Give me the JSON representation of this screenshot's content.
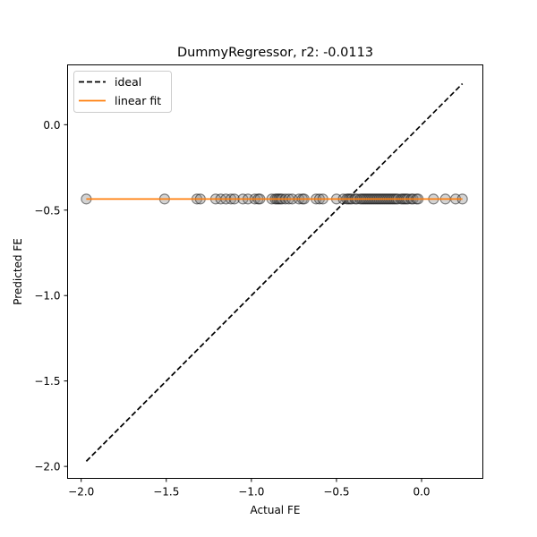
{
  "chart_data": {
    "type": "scatter",
    "title": "DummyRegressor, r2: -0.0113",
    "xlabel": "Actual FE",
    "ylabel": "Predicted FE",
    "xlim": [
      -2.08,
      0.36
    ],
    "ylim": [
      -2.07,
      0.35
    ],
    "xticks": [
      -2.0,
      -1.5,
      -1.0,
      -0.5,
      0.0
    ],
    "xtick_labels": [
      "−2.0",
      "−1.5",
      "−1.0",
      "−0.5",
      "0.0"
    ],
    "yticks": [
      0.0,
      -0.5,
      -1.0,
      -1.5,
      -2.0
    ],
    "ytick_labels": [
      "0.0",
      "−0.5",
      "−1.0",
      "−1.5",
      "−2.0"
    ],
    "grid": false,
    "legend_position": "upper-left",
    "legend": [
      {
        "label": "ideal",
        "style": "dashed",
        "color": "#000000"
      },
      {
        "label": "linear fit",
        "style": "solid",
        "color": "#ff7f0e"
      }
    ],
    "ideal_line": {
      "x": [
        -1.97,
        0.24
      ],
      "y": [
        -1.97,
        0.24
      ]
    },
    "fit_line": {
      "x": [
        -1.97,
        0.24
      ],
      "y": [
        -0.435,
        -0.435
      ]
    },
    "points": {
      "y": -0.435,
      "marker_color": "#808080",
      "x": [
        -1.97,
        -1.51,
        -1.32,
        -1.3,
        -1.21,
        -1.18,
        -1.15,
        -1.12,
        -1.1,
        -1.05,
        -1.02,
        -0.98,
        -0.96,
        -0.95,
        -0.88,
        -0.86,
        -0.85,
        -0.84,
        -0.83,
        -0.82,
        -0.8,
        -0.78,
        -0.76,
        -0.72,
        -0.7,
        -0.69,
        -0.62,
        -0.6,
        -0.58,
        -0.5,
        -0.46,
        -0.44,
        -0.43,
        -0.42,
        -0.41,
        -0.39,
        -0.38,
        -0.36,
        -0.35,
        -0.34,
        -0.33,
        -0.32,
        -0.31,
        -0.3,
        -0.29,
        -0.28,
        -0.27,
        -0.26,
        -0.25,
        -0.24,
        -0.23,
        -0.22,
        -0.21,
        -0.2,
        -0.19,
        -0.18,
        -0.17,
        -0.16,
        -0.15,
        -0.14,
        -0.12,
        -0.11,
        -0.1,
        -0.09,
        -0.08,
        -0.06,
        -0.05,
        -0.03,
        -0.02,
        0.07,
        0.14,
        0.2,
        0.24
      ]
    }
  }
}
